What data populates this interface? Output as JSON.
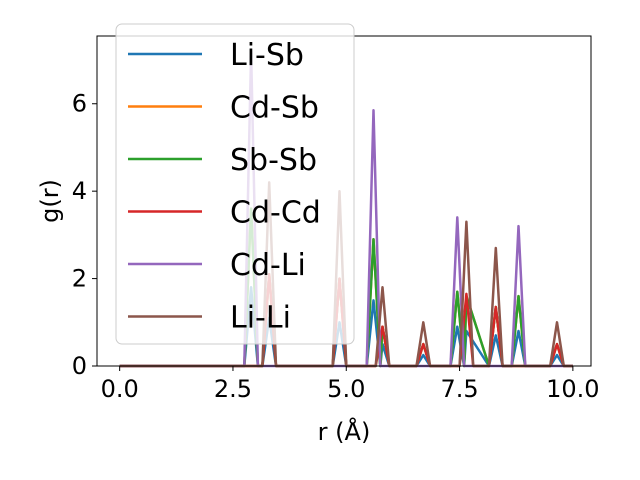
{
  "chart_data": {
    "type": "line",
    "title": "",
    "xlabel": "r (Å)",
    "ylabel": "g(r)",
    "xlim": [
      -0.5,
      10.4
    ],
    "ylim": [
      0,
      7.55
    ],
    "xticks": [
      0.0,
      2.5,
      5.0,
      7.5,
      10.0
    ],
    "xtick_labels": [
      "0.0",
      "2.5",
      "5.0",
      "7.5",
      "10.0"
    ],
    "yticks": [
      0,
      2,
      4,
      6
    ],
    "ytick_labels": [
      "0",
      "2",
      "4",
      "6"
    ],
    "legend_position": "top-left",
    "series": [
      {
        "name": "Li-Sb",
        "color": "#1f77b4",
        "x": [
          0,
          2.75,
          2.9,
          3.05,
          3.15,
          3.3,
          3.45,
          4.7,
          4.85,
          5.0,
          5.45,
          5.6,
          5.75,
          5.8,
          5.95,
          6.55,
          6.7,
          6.85,
          7.3,
          7.45,
          7.6,
          7.65,
          8.15,
          8.3,
          8.45,
          8.65,
          8.8,
          8.95,
          9.5,
          9.65,
          9.8,
          10.0
        ],
        "y": [
          0,
          0,
          1.8,
          0,
          0,
          1.1,
          0,
          0,
          1.0,
          0,
          0,
          1.5,
          0,
          0.5,
          0,
          0,
          0.25,
          0,
          0,
          0.9,
          0,
          0.8,
          0,
          0.7,
          0,
          0,
          0.8,
          0,
          0,
          0.25,
          0,
          0
        ]
      },
      {
        "name": "Cd-Sb",
        "color": "#ff7f0e",
        "x": [
          0,
          2.75,
          2.9,
          3.05,
          3.15,
          3.3,
          3.45,
          4.7,
          4.85,
          5.0,
          5.45,
          5.6,
          5.75,
          5.8,
          5.95,
          6.55,
          6.7,
          6.85,
          7.3,
          7.45,
          7.6,
          7.65,
          8.15,
          8.3,
          8.45,
          8.65,
          8.8,
          8.95,
          9.5,
          9.65,
          9.8,
          10.0
        ],
        "y": [
          0,
          0,
          3.6,
          0,
          0,
          2.1,
          0,
          0,
          2.0,
          0,
          0,
          2.9,
          0,
          0.9,
          0,
          0,
          0.5,
          0,
          0,
          1.7,
          0,
          1.6,
          0,
          1.35,
          0,
          0,
          1.6,
          0,
          0,
          0.5,
          0,
          0
        ]
      },
      {
        "name": "Sb-Sb",
        "color": "#2ca02c",
        "x": [
          0,
          2.75,
          2.9,
          3.05,
          3.15,
          3.3,
          3.45,
          4.7,
          4.85,
          5.0,
          5.45,
          5.6,
          5.75,
          5.8,
          5.95,
          6.55,
          6.7,
          6.85,
          7.3,
          7.45,
          7.6,
          7.65,
          8.15,
          8.3,
          8.45,
          8.65,
          8.8,
          8.95,
          9.5,
          9.65,
          9.8,
          10.0
        ],
        "y": [
          0,
          0,
          3.6,
          0,
          0,
          2.1,
          0,
          0,
          2.0,
          0,
          0,
          2.9,
          0,
          0.9,
          0,
          0,
          0.5,
          0,
          0,
          1.7,
          0,
          1.6,
          0,
          1.35,
          0,
          0,
          1.6,
          0,
          0,
          0.5,
          0,
          0
        ]
      },
      {
        "name": "Cd-Cd",
        "color": "#d62728",
        "x": [
          0,
          3.15,
          3.3,
          3.45,
          4.7,
          4.85,
          5.0,
          5.65,
          5.8,
          5.95,
          6.55,
          6.7,
          6.85,
          7.5,
          7.65,
          7.8,
          8.15,
          8.3,
          8.45,
          9.5,
          9.65,
          9.8,
          10.0
        ],
        "y": [
          0,
          0,
          2.1,
          0,
          0,
          2.0,
          0,
          0,
          0.9,
          0,
          0,
          0.5,
          0,
          0,
          1.65,
          0,
          0,
          1.35,
          0,
          0,
          0.5,
          0,
          0
        ]
      },
      {
        "name": "Cd-Li",
        "color": "#9467bd",
        "x": [
          0,
          2.75,
          2.9,
          3.05,
          5.45,
          5.6,
          5.75,
          7.3,
          7.45,
          7.6,
          8.65,
          8.8,
          8.95,
          10.0
        ],
        "y": [
          0,
          0,
          7.2,
          0,
          0,
          5.85,
          0,
          0,
          3.4,
          0,
          0,
          3.2,
          0,
          0
        ]
      },
      {
        "name": "Li-Li",
        "color": "#8c564b",
        "x": [
          0,
          3.15,
          3.3,
          3.45,
          4.7,
          4.85,
          5.0,
          5.65,
          5.8,
          5.95,
          6.55,
          6.7,
          6.85,
          7.5,
          7.65,
          7.8,
          8.15,
          8.3,
          8.45,
          9.5,
          9.65,
          9.8,
          10.0
        ],
        "y": [
          0,
          0,
          4.2,
          0,
          0,
          4.0,
          0,
          0,
          1.8,
          0,
          0,
          1.0,
          0,
          0,
          3.3,
          0,
          0,
          2.7,
          0,
          0,
          1.0,
          0,
          0
        ]
      }
    ]
  }
}
